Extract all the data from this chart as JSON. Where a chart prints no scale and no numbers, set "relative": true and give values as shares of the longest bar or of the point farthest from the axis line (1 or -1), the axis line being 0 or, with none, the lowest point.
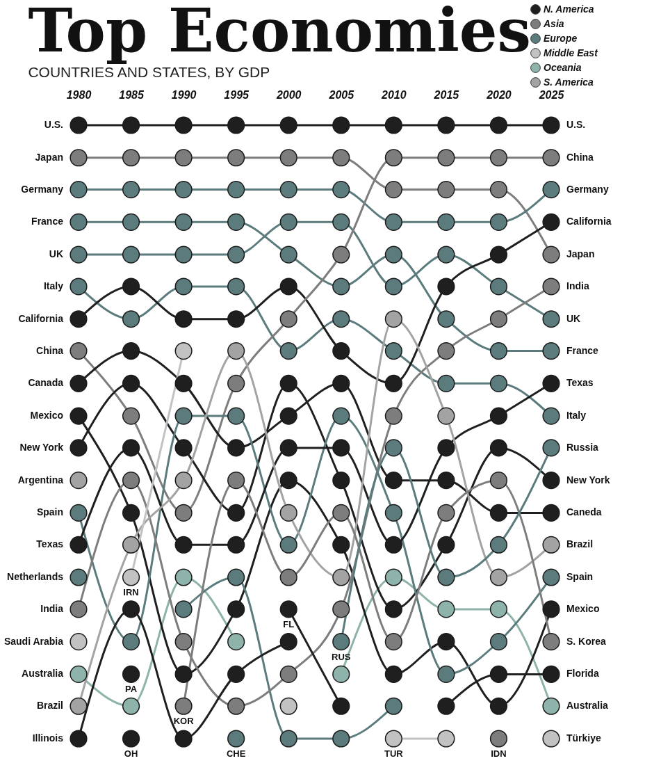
{
  "chart_data": {
    "type": "line",
    "title": "Top Economies",
    "subtitle": "COUNTRIES AND STATES, BY GDP",
    "relative": true,
    "x": [
      1980,
      1985,
      1990,
      1995,
      2000,
      2005,
      2010,
      2015,
      2020,
      2025
    ],
    "xlim": [
      1980,
      2025
    ],
    "xticks": [
      1980,
      1985,
      1990,
      1995,
      2000,
      2005,
      2010,
      2015,
      2020,
      2025
    ],
    "legend": "top right",
    "marker": "circle",
    "series": [
      {
        "name": "N. America",
        "color": "#1f1f1f",
        "values": [
          1,
          1,
          1,
          1,
          1,
          1,
          1,
          1,
          1,
          1
        ]
      },
      {
        "name": "Asia",
        "color": "#7d7d7d",
        "values": [
          0.947,
          0.947,
          0.947,
          0.947,
          0.947,
          0.947,
          0.895,
          0.895,
          0.895,
          0.789
        ]
      },
      {
        "name": "Europe",
        "color": "#5b7b7c",
        "values": [
          0.895,
          0.895,
          0.895,
          0.895,
          0.895,
          0.895,
          0.842,
          0.842,
          0.842,
          0.895
        ]
      },
      {
        "name": "Middle East",
        "color": "#c2c2c2",
        "values": [
          0.158,
          null,
          null,
          null,
          0.053,
          null,
          null,
          null,
          null,
          null
        ]
      },
      {
        "name": "Oceania",
        "color": "#8db3aa",
        "values": [
          0.105,
          0.053,
          0.263,
          0.158,
          null,
          0.105,
          0.263,
          0.211,
          0.211,
          0.053
        ]
      },
      {
        "name": "S. America",
        "color": "#a3a3a3",
        "values": [
          0.421,
          null,
          null,
          null,
          null,
          null,
          null,
          null,
          null,
          null
        ]
      },
      {
        "color": "#5b7b7c",
        "values": [
          0.842,
          0.842,
          0.842,
          0.842,
          0.789,
          0.737,
          0.789,
          0.684,
          0.632,
          0.632
        ]
      },
      {
        "color": "#5b7b7c",
        "values": [
          0.789,
          0.789,
          0.789,
          0.789,
          0.842,
          0.842,
          0.737,
          0.789,
          0.737,
          0.684
        ]
      },
      {
        "color": "#5b7b7c",
        "values": [
          0.737,
          0.684,
          0.737,
          0.737,
          0.632,
          0.684,
          0.632,
          0.579,
          0.579,
          0.526
        ]
      },
      {
        "color": "#1f1f1f",
        "values": [
          0.684,
          0.737,
          0.684,
          0.684,
          0.737,
          0.632,
          0.579,
          0.737,
          0.789,
          0.842
        ]
      },
      {
        "color": "#7d7d7d",
        "values": [
          0.632,
          0.526,
          0.368,
          0.579,
          0.684,
          0.789,
          0.947,
          0.947,
          0.947,
          0.947
        ]
      },
      {
        "color": "#1f1f1f",
        "values": [
          0.579,
          0.632,
          0.579,
          0.474,
          0.526,
          0.579,
          0.421,
          0.421,
          0.368,
          0.368
        ]
      },
      {
        "color": "#1f1f1f",
        "values": [
          0.526,
          0.368,
          0.105,
          0.211,
          0.421,
          0.316,
          0.105,
          0.158,
          0.053,
          0.211
        ]
      },
      {
        "color": "#1f1f1f",
        "values": [
          0.474,
          0.579,
          0.474,
          0.368,
          0.579,
          0.421,
          0.211,
          0.316,
          0.474,
          0.421
        ]
      },
      {
        "color": "#5b7b7c",
        "values": [
          0.368,
          0.158,
          0.526,
          0.526,
          0.316,
          0.526,
          0.368,
          0.105,
          0.158,
          0.263
        ]
      },
      {
        "color": "#1f1f1f",
        "values": [
          0.316,
          0.474,
          0.316,
          0.316,
          0.474,
          0.474,
          0.316,
          0.474,
          0.526,
          0.579
        ]
      },
      {
        "color": "#5b7b7c",
        "values": [
          0.263,
          null,
          0.211,
          0.263,
          0,
          0,
          0.053,
          null,
          null,
          null
        ]
      },
      {
        "color": "#7d7d7d",
        "values": [
          0.211,
          0.421,
          0.158,
          0.053,
          0.105,
          0.211,
          0.526,
          0.632,
          0.684,
          0.737
        ]
      },
      {
        "color": "#a3a3a3",
        "values": [
          0.053,
          0.316,
          0.421,
          0.632,
          0.368,
          0.263,
          0.684,
          0.526,
          0.263,
          0.316
        ]
      },
      {
        "color": "#1f1f1f",
        "values": [
          0,
          0.211,
          0,
          0.105,
          0.158,
          null,
          null,
          null,
          null,
          null
        ]
      },
      {
        "color": "#c2c2c2",
        "values": [
          null,
          0.263,
          0.632,
          null,
          null,
          null,
          null,
          null,
          null,
          null
        ]
      },
      {
        "color": "#1f1f1f",
        "values": [
          null,
          0.105,
          null,
          null,
          null,
          null,
          null,
          null,
          null,
          null
        ]
      },
      {
        "color": "#1f1f1f",
        "values": [
          null,
          0,
          null,
          null,
          null,
          null,
          null,
          null,
          null,
          null
        ]
      },
      {
        "color": "#7d7d7d",
        "values": [
          null,
          null,
          0.053,
          0.421,
          0.263,
          0.368,
          0.158,
          0.368,
          0.421,
          0.158
        ]
      },
      {
        "color": "#5b7b7c",
        "values": [
          null,
          null,
          null,
          0,
          null,
          null,
          null,
          null,
          null,
          null
        ]
      },
      {
        "color": "#1f1f1f",
        "values": [
          null,
          null,
          null,
          null,
          0.211,
          0.053,
          null,
          0.053,
          0.105,
          0.105
        ]
      },
      {
        "color": "#5b7b7c",
        "values": [
          null,
          null,
          null,
          null,
          null,
          0.158,
          0.474,
          0.263,
          0.316,
          0.474
        ]
      },
      {
        "color": "#c2c2c2",
        "values": [
          null,
          null,
          null,
          null,
          null,
          null,
          0,
          0,
          null,
          0
        ]
      },
      {
        "color": "#7d7d7d",
        "values": [
          null,
          null,
          null,
          null,
          null,
          null,
          null,
          null,
          0,
          null
        ]
      }
    ],
    "annotations": [
      {
        "text": "U.S.",
        "x": 1980,
        "y": 1
      },
      {
        "text": "Japan",
        "x": 1980,
        "y": 0.947
      },
      {
        "text": "Germany",
        "x": 1980,
        "y": 0.895
      },
      {
        "text": "France",
        "x": 1980,
        "y": 0.842
      },
      {
        "text": "UK",
        "x": 1980,
        "y": 0.789
      },
      {
        "text": "Italy",
        "x": 1980,
        "y": 0.737
      },
      {
        "text": "California",
        "x": 1980,
        "y": 0.684
      },
      {
        "text": "China",
        "x": 1980,
        "y": 0.632
      },
      {
        "text": "Canada",
        "x": 1980,
        "y": 0.579
      },
      {
        "text": "Mexico",
        "x": 1980,
        "y": 0.526
      },
      {
        "text": "New York",
        "x": 1980,
        "y": 0.474
      },
      {
        "text": "Argentina",
        "x": 1980,
        "y": 0.421
      },
      {
        "text": "Spain",
        "x": 1980,
        "y": 0.368
      },
      {
        "text": "Texas",
        "x": 1980,
        "y": 0.316
      },
      {
        "text": "Netherlands",
        "x": 1980,
        "y": 0.263
      },
      {
        "text": "India",
        "x": 1980,
        "y": 0.211
      },
      {
        "text": "Saudi Arabia",
        "x": 1980,
        "y": 0.158
      },
      {
        "text": "Australia",
        "x": 1980,
        "y": 0.105
      },
      {
        "text": "Brazil",
        "x": 1980,
        "y": 0.053
      },
      {
        "text": "Illinois",
        "x": 1980,
        "y": 0
      },
      {
        "text": "U.S.",
        "x": 2025,
        "y": 1
      },
      {
        "text": "China",
        "x": 2025,
        "y": 0.947
      },
      {
        "text": "Germany",
        "x": 2025,
        "y": 0.895
      },
      {
        "text": "California",
        "x": 2025,
        "y": 0.842
      },
      {
        "text": "Japan",
        "x": 2025,
        "y": 0.789
      },
      {
        "text": "India",
        "x": 2025,
        "y": 0.737
      },
      {
        "text": "UK",
        "x": 2025,
        "y": 0.684
      },
      {
        "text": "France",
        "x": 2025,
        "y": 0.632
      },
      {
        "text": "Texas",
        "x": 2025,
        "y": 0.579
      },
      {
        "text": "Italy",
        "x": 2025,
        "y": 0.526
      },
      {
        "text": "Russia",
        "x": 2025,
        "y": 0.474
      },
      {
        "text": "New York",
        "x": 2025,
        "y": 0.421
      },
      {
        "text": "Caneda",
        "x": 2025,
        "y": 0.368
      },
      {
        "text": "Brazil",
        "x": 2025,
        "y": 0.316
      },
      {
        "text": "Spain",
        "x": 2025,
        "y": 0.263
      },
      {
        "text": "Mexico",
        "x": 2025,
        "y": 0.211
      },
      {
        "text": "S. Korea",
        "x": 2025,
        "y": 0.158
      },
      {
        "text": "Florida",
        "x": 2025,
        "y": 0.105
      },
      {
        "text": "Australia",
        "x": 2025,
        "y": 0.053
      },
      {
        "text": "Türkiye",
        "x": 2025,
        "y": 0
      },
      {
        "text": "IRN",
        "x": 1985,
        "y": 0.263
      },
      {
        "text": "PA",
        "x": 1985,
        "y": 0.105
      },
      {
        "text": "OH",
        "x": 1985,
        "y": 0
      },
      {
        "text": "KOR",
        "x": 1990,
        "y": 0.053
      },
      {
        "text": "CHE",
        "x": 1995,
        "y": 0
      },
      {
        "text": "FL",
        "x": 2000,
        "y": 0.211
      },
      {
        "text": "RUS",
        "x": 2005,
        "y": 0.158
      },
      {
        "text": "TUR",
        "x": 2010,
        "y": 0
      },
      {
        "text": "IDN",
        "x": 2020,
        "y": 0
      }
    ]
  }
}
